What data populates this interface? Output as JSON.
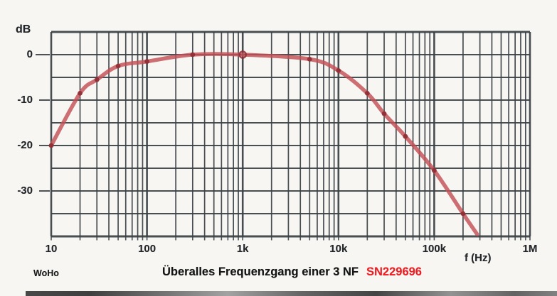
{
  "page": {
    "background": "#f7f6f2"
  },
  "title": {
    "main": "Überalles Frequenzgang einer 3 NF",
    "serial": "SN229696",
    "serial_color": "#ef1d24"
  },
  "footer": {
    "author": "WoHo"
  },
  "axes": {
    "y_unit": "dB",
    "x_label": "f  (Hz)"
  },
  "chart_data": {
    "type": "line",
    "title": "Überalles Frequenzgang einer 3 NF SN229696",
    "xlabel": "f (Hz)",
    "ylabel": "dB",
    "x_scale": "log",
    "x_range_hz": [
      10,
      1000000
    ],
    "ylim": [
      -40,
      5
    ],
    "grid_db_step": 5,
    "grid_on": true,
    "x_ticks": [
      {
        "f": 10,
        "label": "10"
      },
      {
        "f": 100,
        "label": "100"
      },
      {
        "f": 1000,
        "label": "1k"
      },
      {
        "f": 10000,
        "label": "10k"
      },
      {
        "f": 100000,
        "label": "100k"
      },
      {
        "f": 1000000,
        "label": "1M"
      }
    ],
    "y_ticks": [
      {
        "db": 0,
        "label": "0"
      },
      {
        "db": -10,
        "label": "-10"
      },
      {
        "db": -20,
        "label": "-20"
      },
      {
        "db": -30,
        "label": "-30"
      }
    ],
    "points": [
      {
        "f": 10,
        "db": -20,
        "marker": "dot"
      },
      {
        "f": 20,
        "db": -8.5,
        "marker": "dot"
      },
      {
        "f": 30,
        "db": -5.5,
        "marker": "dot"
      },
      {
        "f": 50,
        "db": -2.5,
        "marker": "dot"
      },
      {
        "f": 100,
        "db": -1.5,
        "marker": "dot"
      },
      {
        "f": 300,
        "db": 0,
        "marker": "dot"
      },
      {
        "f": 1000,
        "db": 0,
        "marker": "ring"
      },
      {
        "f": 5000,
        "db": -1,
        "marker": "dot"
      },
      {
        "f": 10000,
        "db": -3.5,
        "marker": "dot"
      },
      {
        "f": 20000,
        "db": -8.5,
        "marker": "dot"
      },
      {
        "f": 30000,
        "db": -13,
        "marker": "dot"
      },
      {
        "f": 50000,
        "db": -18,
        "marker": "dot"
      },
      {
        "f": 100000,
        "db": -25.5,
        "marker": "dot"
      },
      {
        "f": 200000,
        "db": -35,
        "marker": "dot"
      }
    ],
    "curve_tail": {
      "f": 280000,
      "db": -39.5
    },
    "curve_color": "#c34f55",
    "marker_color": "#8e2d34",
    "grid_color": "#3a4145",
    "legend": null
  }
}
